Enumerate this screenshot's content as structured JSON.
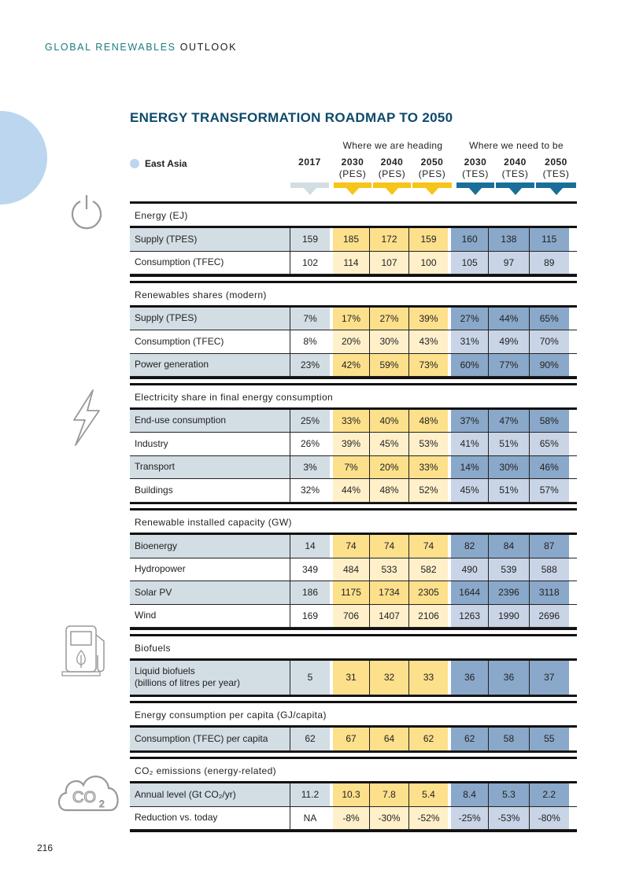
{
  "running_header": {
    "part1": "GLOBAL RENEWABLES",
    "part2": "OUTLOOK"
  },
  "title": "ENERGY TRANSFORMATION ROADMAP TO 2050",
  "region": "East Asia",
  "colors": {
    "region_dot": "#bcd6ef",
    "title": "#0e4a6b",
    "baseline": "#d3dde4",
    "pes": "#fde08c",
    "pes_light": "#fff0ca",
    "tes": "#8aa8c9",
    "tes_light": "#c9d4e6",
    "pes_marker": "#f5c518",
    "tes_marker": "#1a6e9a"
  },
  "groups": {
    "pes": "Where we are heading",
    "tes": "Where we need to be"
  },
  "columns": [
    {
      "year": "2017",
      "scenario": ""
    },
    {
      "year": "2030",
      "scenario": "(PES)"
    },
    {
      "year": "2040",
      "scenario": "(PES)"
    },
    {
      "year": "2050",
      "scenario": "(PES)"
    },
    {
      "year": "2030",
      "scenario": "(TES)"
    },
    {
      "year": "2040",
      "scenario": "(TES)"
    },
    {
      "year": "2050",
      "scenario": "(TES)"
    }
  ],
  "sections": [
    {
      "title": "Energy (EJ)",
      "icon": "power-icon",
      "rows": [
        {
          "label": "Supply (TPES)",
          "style": "dark",
          "values": [
            "159",
            "185",
            "172",
            "159",
            "160",
            "138",
            "115"
          ]
        },
        {
          "label": "Consumption (TFEC)",
          "style": "light",
          "values": [
            "102",
            "114",
            "107",
            "100",
            "105",
            "97",
            "89"
          ]
        }
      ]
    },
    {
      "title": "Renewables shares (modern)",
      "rows": [
        {
          "label": "Supply (TPES)",
          "style": "dark",
          "values": [
            "7%",
            "17%",
            "27%",
            "39%",
            "27%",
            "44%",
            "65%"
          ]
        },
        {
          "label": "Consumption (TFEC)",
          "style": "light",
          "values": [
            "8%",
            "20%",
            "30%",
            "43%",
            "31%",
            "49%",
            "70%"
          ]
        },
        {
          "label": "Power generation",
          "style": "dark",
          "values": [
            "23%",
            "42%",
            "59%",
            "73%",
            "60%",
            "77%",
            "90%"
          ]
        }
      ]
    },
    {
      "title": "Electricity share in final energy consumption",
      "icon": "lightning-icon",
      "rows": [
        {
          "label": "End-use consumption",
          "style": "dark",
          "values": [
            "25%",
            "33%",
            "40%",
            "48%",
            "37%",
            "47%",
            "58%"
          ]
        },
        {
          "label": "Industry",
          "style": "light",
          "values": [
            "26%",
            "39%",
            "45%",
            "53%",
            "41%",
            "51%",
            "65%"
          ]
        },
        {
          "label": "Transport",
          "style": "dark",
          "values": [
            "3%",
            "7%",
            "20%",
            "33%",
            "14%",
            "30%",
            "46%"
          ]
        },
        {
          "label": "Buildings",
          "style": "light",
          "values": [
            "32%",
            "44%",
            "48%",
            "52%",
            "45%",
            "51%",
            "57%"
          ]
        }
      ]
    },
    {
      "title": "Renewable installed capacity (GW)",
      "rows": [
        {
          "label": "Bioenergy",
          "style": "dark",
          "values": [
            "14",
            "74",
            "74",
            "74",
            "82",
            "84",
            "87"
          ]
        },
        {
          "label": "Hydropower",
          "style": "light",
          "values": [
            "349",
            "484",
            "533",
            "582",
            "490",
            "539",
            "588"
          ]
        },
        {
          "label": "Solar PV",
          "style": "dark",
          "values": [
            "186",
            "1175",
            "1734",
            "2305",
            "1644",
            "2396",
            "3118"
          ]
        },
        {
          "label": "Wind",
          "style": "light",
          "values": [
            "169",
            "706",
            "1407",
            "2106",
            "1263",
            "1990",
            "2696"
          ]
        }
      ]
    },
    {
      "title": "Biofuels",
      "icon": "fuel-pump-icon",
      "rows": [
        {
          "label": "Liquid biofuels",
          "label2": "(billions of litres per year)",
          "style": "dark",
          "values": [
            "5",
            "31",
            "32",
            "33",
            "36",
            "36",
            "37"
          ]
        }
      ]
    },
    {
      "title": "Energy consumption per capita (GJ/capita)",
      "rows": [
        {
          "label": "Consumption (TFEC) per capita",
          "style": "dark",
          "values": [
            "62",
            "67",
            "64",
            "62",
            "62",
            "58",
            "55"
          ]
        }
      ]
    },
    {
      "title": "CO₂ emissions (energy-related)",
      "icon": "co2-cloud-icon",
      "rows": [
        {
          "label": "Annual level (Gt CO₂/yr)",
          "style": "dark",
          "values": [
            "11.2",
            "10.3",
            "7.8",
            "5.4",
            "8.4",
            "5.3",
            "2.2"
          ]
        },
        {
          "label": "Reduction vs. today",
          "style": "light",
          "values": [
            "NA",
            "-8%",
            "-30%",
            "-52%",
            "-25%",
            "-53%",
            "-80%"
          ]
        }
      ]
    }
  ],
  "page_number": "216"
}
